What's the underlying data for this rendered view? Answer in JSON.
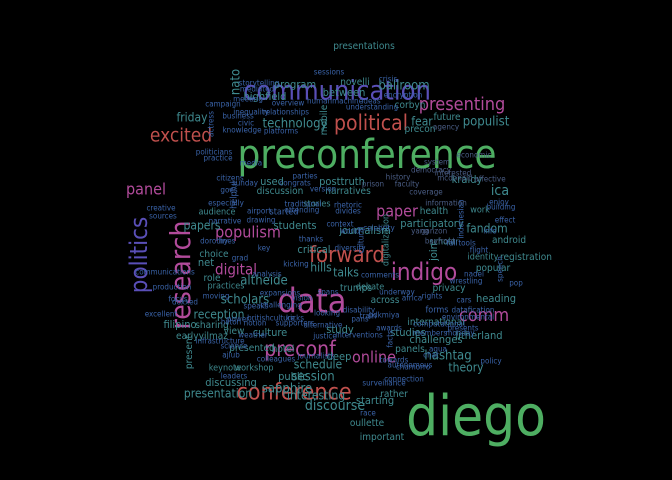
{
  "colors": {
    "background": "#000000",
    "palette": {
      "green": "#4eae62",
      "purple": "#5a4fb8",
      "red": "#c0504d",
      "magenta": "#b24b9b",
      "teal": "#3f8a8f",
      "blue": "#3a63a8",
      "slate": "#4b5e86"
    }
  },
  "words": [
    {
      "text": "diego",
      "color": "green"
    },
    {
      "text": "preconference",
      "color": "green"
    },
    {
      "text": "data",
      "color": "magenta"
    },
    {
      "text": "communication",
      "color": "purple"
    },
    {
      "text": "research",
      "color": "magenta"
    },
    {
      "text": "politics",
      "color": "purple"
    },
    {
      "text": "conference",
      "color": "red"
    },
    {
      "text": "indigo",
      "color": "magenta"
    },
    {
      "text": "forward",
      "color": "red"
    },
    {
      "text": "political",
      "color": "red"
    },
    {
      "text": "preconf",
      "color": "magenta"
    },
    {
      "text": "excited",
      "color": "red"
    },
    {
      "text": "presenting",
      "color": "magenta"
    },
    {
      "text": "comm",
      "color": "magenta"
    },
    {
      "text": "online",
      "color": "magenta"
    },
    {
      "text": "paper",
      "color": "magenta"
    },
    {
      "text": "panel",
      "color": "magenta"
    },
    {
      "text": "populism",
      "color": "magenta"
    },
    {
      "text": "digital",
      "color": "magenta"
    },
    {
      "text": "ballroom",
      "color": "teal"
    },
    {
      "text": "session",
      "color": "teal"
    },
    {
      "text": "discourse",
      "color": "teal"
    },
    {
      "text": "technology",
      "color": "teal"
    },
    {
      "text": "hashtag",
      "color": "teal"
    },
    {
      "text": "sapphire",
      "color": "teal"
    },
    {
      "text": "scholars",
      "color": "teal"
    },
    {
      "text": "altheide",
      "color": "teal"
    },
    {
      "text": "reception",
      "color": "teal"
    },
    {
      "text": "populist",
      "color": "teal"
    },
    {
      "text": "ica",
      "color": "teal"
    },
    {
      "text": "nato",
      "color": "teal"
    },
    {
      "text": "friday",
      "color": "teal"
    },
    {
      "text": "highfield",
      "color": "teal"
    },
    {
      "text": "program",
      "color": "teal"
    },
    {
      "text": "between",
      "color": "teal"
    },
    {
      "text": "schedule",
      "color": "teal"
    },
    {
      "text": "interesting",
      "color": "teal"
    },
    {
      "text": "presentation",
      "color": "teal"
    },
    {
      "text": "talks",
      "color": "teal"
    },
    {
      "text": "hills",
      "color": "teal"
    },
    {
      "text": "papers",
      "color": "teal"
    },
    {
      "text": "students",
      "color": "teal"
    },
    {
      "text": "critical",
      "color": "teal"
    },
    {
      "text": "journalism",
      "color": "teal"
    },
    {
      "text": "participatory",
      "color": "teal"
    },
    {
      "text": "fandom",
      "color": "teal"
    },
    {
      "text": "heading",
      "color": "teal"
    },
    {
      "text": "litherland",
      "color": "teal"
    },
    {
      "text": "theory",
      "color": "teal"
    },
    {
      "text": "starting",
      "color": "teal"
    },
    {
      "text": "important",
      "color": "teal"
    },
    {
      "text": "studies",
      "color": "teal"
    },
    {
      "text": "present",
      "color": "teal"
    },
    {
      "text": "public",
      "color": "teal"
    },
    {
      "text": "culture",
      "color": "teal"
    },
    {
      "text": "discussing",
      "color": "teal"
    },
    {
      "text": "filipino",
      "color": "teal"
    },
    {
      "text": "sharing",
      "color": "teal"
    },
    {
      "text": "earlyyilmaz",
      "color": "teal"
    },
    {
      "text": "presented",
      "color": "teal"
    },
    {
      "text": "hotel",
      "color": "teal"
    },
    {
      "text": "study",
      "color": "teal"
    },
    {
      "text": "panels",
      "color": "teal"
    },
    {
      "text": "posttruth",
      "color": "teal"
    },
    {
      "text": "discussion",
      "color": "teal"
    },
    {
      "text": "narratives",
      "color": "teal"
    },
    {
      "text": "health",
      "color": "teal"
    },
    {
      "text": "kraidy",
      "color": "teal"
    },
    {
      "text": "international",
      "color": "teal"
    },
    {
      "text": "challenges",
      "color": "teal"
    },
    {
      "text": "rather",
      "color": "teal"
    },
    {
      "text": "oullette",
      "color": "teal"
    },
    {
      "text": "presentations",
      "color": "teal"
    },
    {
      "text": "novelli",
      "color": "teal"
    },
    {
      "text": "corbyn",
      "color": "teal"
    },
    {
      "text": "fear",
      "color": "teal"
    },
    {
      "text": "future",
      "color": "teal"
    },
    {
      "text": "precon",
      "color": "teal"
    },
    {
      "text": "mobile",
      "color": "teal"
    },
    {
      "text": "used",
      "color": "teal"
    },
    {
      "text": "net",
      "color": "teal"
    },
    {
      "text": "role",
      "color": "teal"
    },
    {
      "text": "choice",
      "color": "teal"
    },
    {
      "text": "view",
      "color": "teal"
    },
    {
      "text": "trumps",
      "color": "teal"
    },
    {
      "text": "across",
      "color": "teal"
    },
    {
      "text": "debate",
      "color": "teal"
    },
    {
      "text": "join",
      "color": "teal"
    },
    {
      "text": "android",
      "color": "teal"
    },
    {
      "text": "registration",
      "color": "teal"
    },
    {
      "text": "popular",
      "color": "teal"
    },
    {
      "text": "deep",
      "color": "teal"
    },
    {
      "text": "practices",
      "color": "teal"
    },
    {
      "text": "keynote",
      "color": "teal"
    },
    {
      "text": "workshop",
      "color": "teal"
    },
    {
      "text": "audience",
      "color": "teal"
    },
    {
      "text": "stories",
      "color": "teal"
    },
    {
      "text": "digitalization",
      "color": "teal"
    },
    {
      "text": "identity",
      "color": "teal"
    },
    {
      "text": "privacy",
      "color": "teal"
    },
    {
      "text": "scholar",
      "color": "teal"
    },
    {
      "text": "work",
      "color": "teal"
    },
    {
      "text": "economic",
      "color": "slate"
    },
    {
      "text": "system",
      "color": "slate"
    },
    {
      "text": "history",
      "color": "slate"
    },
    {
      "text": "faculty",
      "color": "slate"
    },
    {
      "text": "prison",
      "color": "slate"
    },
    {
      "text": "coverage",
      "color": "slate"
    },
    {
      "text": "information",
      "color": "slate"
    },
    {
      "text": "ganzon",
      "color": "slate"
    },
    {
      "text": "yang",
      "color": "slate"
    },
    {
      "text": "bayfront",
      "color": "slate"
    },
    {
      "text": "democracy",
      "color": "slate"
    },
    {
      "text": "mcdonald",
      "color": "slate"
    },
    {
      "text": "interested",
      "color": "slate"
    },
    {
      "text": "affective",
      "color": "slate"
    },
    {
      "text": "agency",
      "color": "slate"
    },
    {
      "text": "humanmachine",
      "color": "blue"
    },
    {
      "text": "ideas",
      "color": "blue"
    },
    {
      "text": "understanding",
      "color": "blue"
    },
    {
      "text": "encryption",
      "color": "blue"
    },
    {
      "text": "crisis",
      "color": "blue"
    },
    {
      "text": "sessions",
      "color": "blue"
    },
    {
      "text": "storytelling",
      "color": "blue"
    },
    {
      "text": "mediated",
      "color": "blue"
    },
    {
      "text": "meeting",
      "color": "blue"
    },
    {
      "text": "overview",
      "color": "blue"
    },
    {
      "text": "relationships",
      "color": "blue"
    },
    {
      "text": "inequality",
      "color": "blue"
    },
    {
      "text": "campaign",
      "color": "blue"
    },
    {
      "text": "business",
      "color": "blue"
    },
    {
      "text": "civic",
      "color": "blue"
    },
    {
      "text": "knowledge",
      "color": "blue"
    },
    {
      "text": "platforms",
      "color": "blue"
    },
    {
      "text": "actress",
      "color": "blue"
    },
    {
      "text": "politicians",
      "color": "blue"
    },
    {
      "text": "practice",
      "color": "blue"
    },
    {
      "text": "sunday",
      "color": "blue"
    },
    {
      "text": "helpful",
      "color": "blue"
    },
    {
      "text": "congrats",
      "color": "blue"
    },
    {
      "text": "traditional",
      "color": "blue"
    },
    {
      "text": "especially",
      "color": "blue"
    },
    {
      "text": "creative",
      "color": "blue"
    },
    {
      "text": "sources",
      "color": "blue"
    },
    {
      "text": "airport",
      "color": "blue"
    },
    {
      "text": "started",
      "color": "blue"
    },
    {
      "text": "drawing",
      "color": "blue"
    },
    {
      "text": "narrative",
      "color": "blue"
    },
    {
      "text": "dorothy",
      "color": "blue"
    },
    {
      "text": "lines",
      "color": "blue"
    },
    {
      "text": "key",
      "color": "blue"
    },
    {
      "text": "grad",
      "color": "blue"
    },
    {
      "text": "celebrity",
      "color": "blue"
    },
    {
      "text": "rhetoric",
      "color": "blue"
    },
    {
      "text": "divides",
      "color": "blue"
    },
    {
      "text": "attending",
      "color": "blue"
    },
    {
      "text": "thanks",
      "color": "blue"
    },
    {
      "text": "cultural",
      "color": "blue"
    },
    {
      "text": "kicking",
      "color": "blue"
    },
    {
      "text": "diversity",
      "color": "blue"
    },
    {
      "text": "looking",
      "color": "blue"
    },
    {
      "text": "comments",
      "color": "blue"
    },
    {
      "text": "underway",
      "color": "blue"
    },
    {
      "text": "rights",
      "color": "blue"
    },
    {
      "text": "tools",
      "color": "blue"
    },
    {
      "text": "flight",
      "color": "blue"
    },
    {
      "text": "effect",
      "color": "blue"
    },
    {
      "text": "building",
      "color": "blue"
    },
    {
      "text": "enjoy",
      "color": "blue"
    },
    {
      "text": "pop",
      "color": "blue"
    },
    {
      "text": "forms",
      "color": "blue"
    },
    {
      "text": "datafication",
      "color": "blue"
    },
    {
      "text": "environmental",
      "color": "blue"
    },
    {
      "text": "africa",
      "color": "blue"
    },
    {
      "text": "awards",
      "color": "blue"
    },
    {
      "text": "interventions",
      "color": "blue"
    },
    {
      "text": "chamorro",
      "color": "blue"
    },
    {
      "text": "towards",
      "color": "blue"
    },
    {
      "text": "autonomous",
      "color": "blue"
    },
    {
      "text": "chat",
      "color": "blue"
    },
    {
      "text": "aqua",
      "color": "blue"
    },
    {
      "text": "policy",
      "color": "blue"
    },
    {
      "text": "computational",
      "color": "blue"
    },
    {
      "text": "members",
      "color": "blue"
    },
    {
      "text": "monday",
      "color": "blue"
    },
    {
      "text": "presents",
      "color": "blue"
    },
    {
      "text": "ajlub",
      "color": "blue"
    },
    {
      "text": "science",
      "color": "blue"
    },
    {
      "text": "infrastructure",
      "color": "blue"
    },
    {
      "text": "leaders",
      "color": "blue"
    },
    {
      "text": "colleagues",
      "color": "blue"
    },
    {
      "text": "supporters",
      "color": "blue"
    },
    {
      "text": "alternative",
      "color": "blue"
    },
    {
      "text": "justice",
      "color": "blue"
    },
    {
      "text": "journalists",
      "color": "blue"
    },
    {
      "text": "race",
      "color": "blue"
    },
    {
      "text": "surveillance",
      "color": "blue"
    },
    {
      "text": "connection",
      "color": "blue"
    },
    {
      "text": "facts",
      "color": "blue"
    },
    {
      "text": "excellent",
      "color": "blue"
    },
    {
      "text": "communications",
      "color": "blue"
    },
    {
      "text": "production",
      "color": "blue"
    },
    {
      "text": "focus",
      "color": "blue"
    },
    {
      "text": "speaks",
      "color": "blue"
    },
    {
      "text": "hilton",
      "color": "blue"
    },
    {
      "text": "britishculture",
      "color": "blue"
    },
    {
      "text": "power",
      "color": "blue"
    },
    {
      "text": "disability",
      "color": "blue"
    },
    {
      "text": "pdkmiya",
      "color": "blue"
    },
    {
      "text": "pans",
      "color": "blue"
    },
    {
      "text": "kicks",
      "color": "blue"
    },
    {
      "text": "notion",
      "color": "blue"
    },
    {
      "text": "media",
      "color": "blue"
    },
    {
      "text": "citizens",
      "color": "blue"
    },
    {
      "text": "goes",
      "color": "blue"
    },
    {
      "text": "parties",
      "color": "blue"
    },
    {
      "text": "version",
      "color": "blue"
    },
    {
      "text": "context",
      "color": "blue"
    },
    {
      "text": "world",
      "color": "blue"
    },
    {
      "text": "spans",
      "color": "blue"
    },
    {
      "text": "info",
      "color": "blue"
    },
    {
      "text": "fall",
      "color": "blue"
    },
    {
      "text": "indonesian",
      "color": "blue"
    },
    {
      "text": "nadel",
      "color": "blue"
    },
    {
      "text": "wrestling",
      "color": "blue"
    },
    {
      "text": "speech",
      "color": "blue"
    },
    {
      "text": "cars",
      "color": "blue"
    },
    {
      "text": "doxxed",
      "color": "blue"
    },
    {
      "text": "moving",
      "color": "blue"
    },
    {
      "text": "weather",
      "color": "blue"
    },
    {
      "text": "analysis",
      "color": "blue"
    },
    {
      "text": "expansions",
      "color": "blue"
    },
    {
      "text": "challenging",
      "color": "blue"
    },
    {
      "text": "vision",
      "color": "blue"
    },
    {
      "text": "train",
      "color": "blue"
    },
    {
      "text": "rain",
      "color": "blue"
    },
    {
      "text": "students",
      "color": "blue"
    },
    {
      "text": "kent",
      "color": "blue"
    },
    {
      "text": "events",
      "color": "blue"
    },
    {
      "text": "engaging",
      "color": "blue"
    },
    {
      "text": "brand",
      "color": "blue"
    },
    {
      "text": "sheet",
      "color": "blue"
    },
    {
      "text": "lobby",
      "color": "blue"
    }
  ]
}
